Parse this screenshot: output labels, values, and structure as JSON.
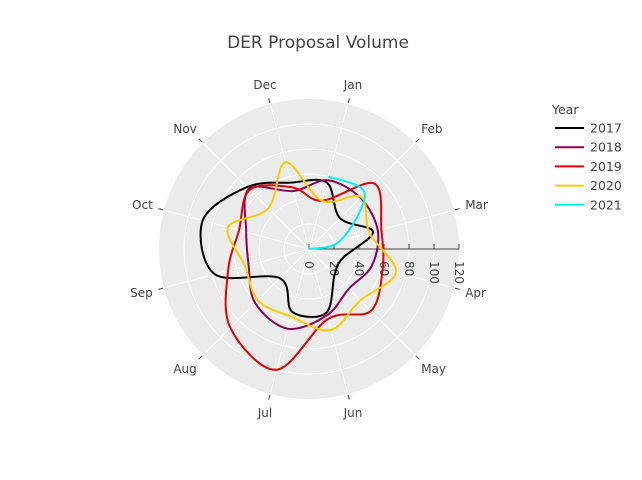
{
  "chart_data": {
    "type": "line",
    "subtype": "polar",
    "title": "DER Proposal Volume",
    "angular_categories": [
      "Jan",
      "Feb",
      "Mar",
      "Apr",
      "May",
      "Jun",
      "Jul",
      "Aug",
      "Sep",
      "Oct",
      "Nov",
      "Dec"
    ],
    "radial_ticks": [
      "0",
      "20",
      "40",
      "60",
      "80",
      "100",
      "120"
    ],
    "radial_range": [
      0,
      120
    ],
    "legend_title": "Year",
    "legend_position": "top-right",
    "series": [
      {
        "name": "2017",
        "color": "#000000",
        "closed": true,
        "values": [
          55,
          35,
          53,
          28,
          29,
          53,
          52,
          33,
          78,
          88,
          70,
          55
        ]
      },
      {
        "name": "2018",
        "color": "#8c0058",
        "closed": true,
        "values": [
          57,
          58,
          57,
          52,
          45,
          55,
          66,
          61,
          50,
          52,
          68,
          48
        ]
      },
      {
        "name": "2019",
        "color": "#e00000",
        "closed": true,
        "values": [
          40,
          74,
          60,
          61,
          70,
          58,
          100,
          89,
          67,
          58,
          67,
          51
        ]
      },
      {
        "name": "2020",
        "color": "#ffcc00",
        "closed": true,
        "values": [
          40,
          59,
          50,
          72,
          58,
          67,
          56,
          58,
          53,
          67,
          46,
          72
        ]
      },
      {
        "name": "2021",
        "color": "#00f0f0",
        "closed": false,
        "values": [
          60,
          63,
          26,
          0
        ]
      }
    ],
    "grid": true
  }
}
